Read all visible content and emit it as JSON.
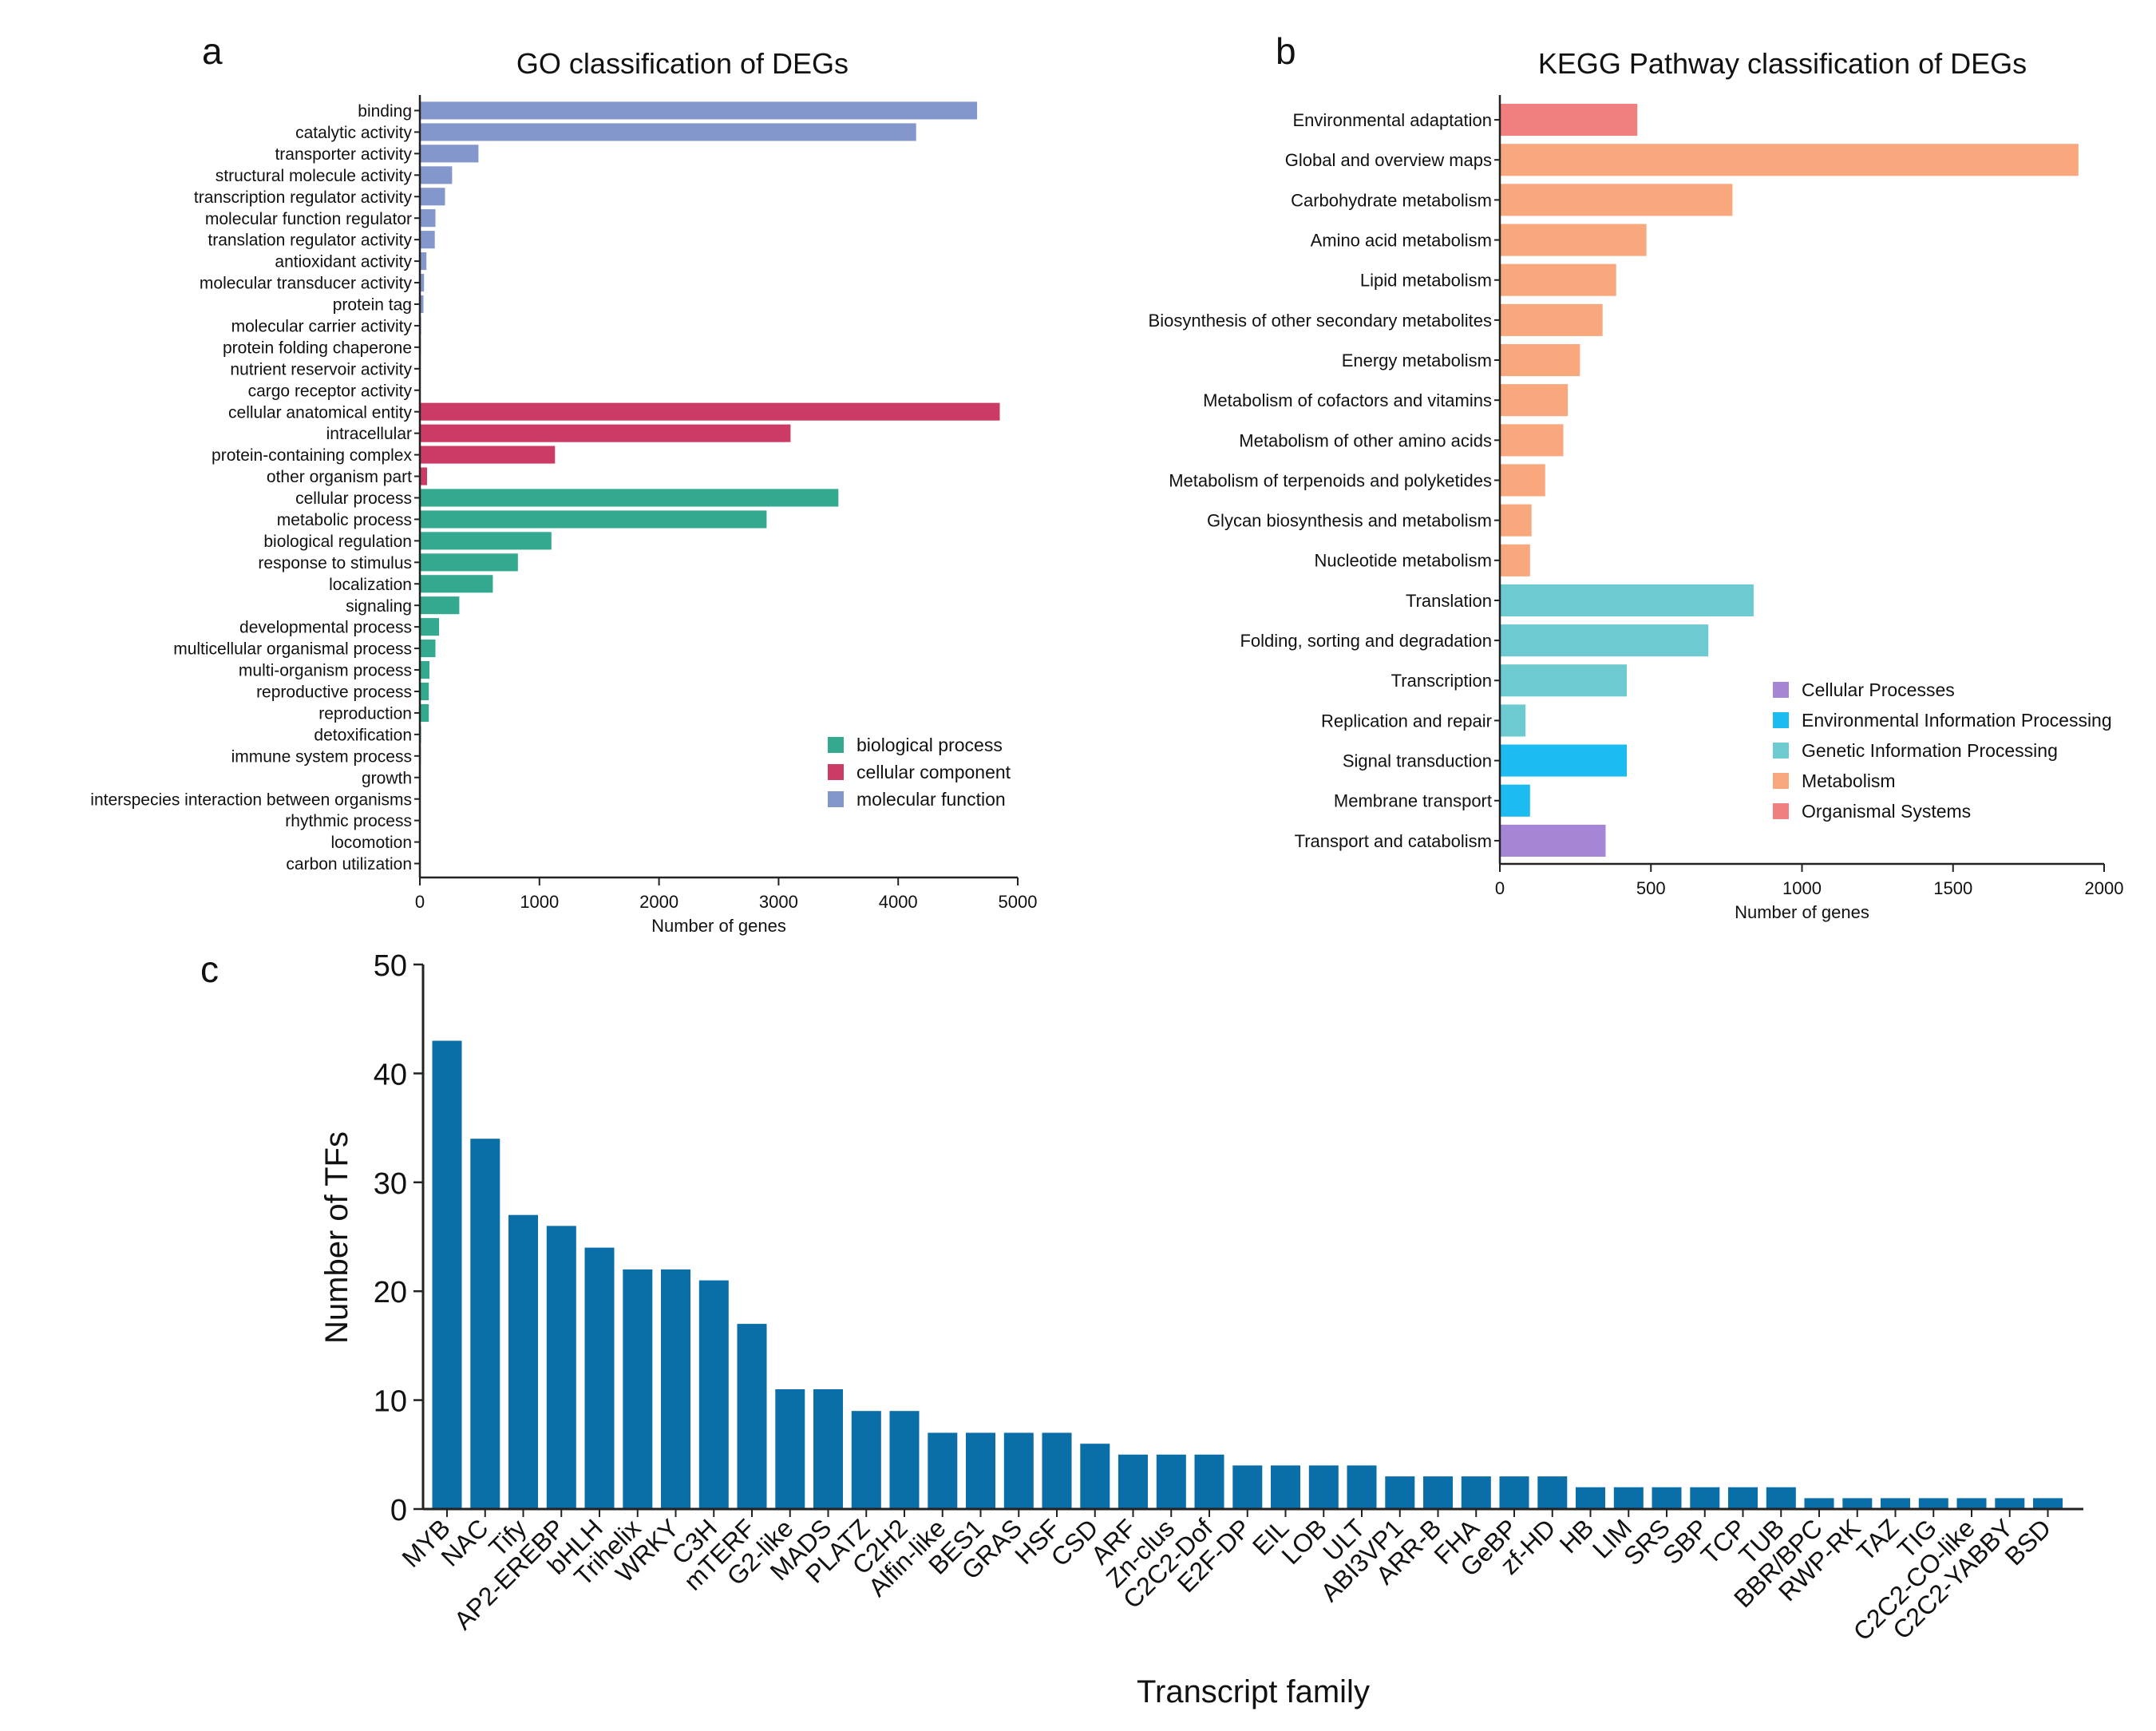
{
  "chart_data": [
    {
      "panel": "a",
      "type": "bar",
      "orientation": "horizontal",
      "title": "GO classification of DEGs",
      "xlabel": "Number of genes",
      "ylabel": "",
      "xlim": [
        0,
        5000
      ],
      "xticks": [
        "0",
        "1000",
        "2000",
        "3000",
        "4000",
        "5000"
      ],
      "legend_position": "bottom-right",
      "legend": [
        {
          "name": "biological process",
          "color": "#33a98f"
        },
        {
          "name": "cellular component",
          "color": "#cc3a66"
        },
        {
          "name": "molecular function",
          "color": "#8497cc"
        }
      ],
      "categories": [
        "binding",
        "catalytic activity",
        "transporter activity",
        "structural molecule activity",
        "transcription regulator activity",
        "molecular function regulator",
        "translation regulator activity",
        "antioxidant activity",
        "molecular transducer activity",
        "protein tag",
        "molecular carrier activity",
        "protein folding chaperone",
        "nutrient reservoir activity",
        "cargo receptor activity",
        "cellular anatomical entity",
        "intracellular",
        "protein-containing complex",
        "other organism part",
        "cellular process",
        "metabolic process",
        "biological regulation",
        "response to stimulus",
        "localization",
        "signaling",
        "developmental process",
        "multicellular organismal process",
        "multi-organism process",
        "reproductive process",
        "reproduction",
        "detoxification",
        "immune system process",
        "growth",
        "interspecies interaction between organisms",
        "rhythmic process",
        "locomotion",
        "carbon utilization"
      ],
      "values": [
        4660,
        4150,
        490,
        270,
        210,
        130,
        125,
        55,
        35,
        30,
        10,
        8,
        6,
        5,
        4850,
        3100,
        1130,
        60,
        3500,
        2900,
        1100,
        820,
        610,
        330,
        160,
        130,
        80,
        75,
        75,
        10,
        8,
        6,
        5,
        4,
        3,
        2
      ],
      "groups": [
        "molecular function",
        "molecular function",
        "molecular function",
        "molecular function",
        "molecular function",
        "molecular function",
        "molecular function",
        "molecular function",
        "molecular function",
        "molecular function",
        "molecular function",
        "molecular function",
        "molecular function",
        "molecular function",
        "cellular component",
        "cellular component",
        "cellular component",
        "cellular component",
        "biological process",
        "biological process",
        "biological process",
        "biological process",
        "biological process",
        "biological process",
        "biological process",
        "biological process",
        "biological process",
        "biological process",
        "biological process",
        "biological process",
        "biological process",
        "biological process",
        "biological process",
        "biological process",
        "biological process",
        "biological process"
      ]
    },
    {
      "panel": "b",
      "type": "bar",
      "orientation": "horizontal",
      "title": "KEGG Pathway classification of DEGs",
      "xlabel": "Number of genes",
      "ylabel": "",
      "xlim": [
        0,
        2000
      ],
      "xticks": [
        "0",
        "500",
        "1000",
        "1500",
        "2000"
      ],
      "legend_position": "right",
      "legend": [
        {
          "name": "Cellular Processes",
          "color": "#a585d6"
        },
        {
          "name": "Environmental Information Processing",
          "color": "#1cbcf0"
        },
        {
          "name": "Genetic Information Processing",
          "color": "#6dcad1"
        },
        {
          "name": "Metabolism",
          "color": "#f9a77d"
        },
        {
          "name": "Organismal Systems",
          "color": "#f27f80"
        }
      ],
      "categories": [
        "Environmental adaptation",
        "Global and overview maps",
        "Carbohydrate metabolism",
        "Amino acid metabolism",
        "Lipid metabolism",
        "Biosynthesis of other secondary metabolites",
        "Energy metabolism",
        "Metabolism of cofactors and vitamins",
        "Metabolism of other amino acids",
        "Metabolism of terpenoids and polyketides",
        "Glycan biosynthesis and metabolism",
        "Nucleotide metabolism",
        "Translation",
        "Folding, sorting and degradation",
        "Transcription",
        "Replication and repair",
        "Signal transduction",
        "Membrane transport",
        "Transport and catabolism"
      ],
      "values": [
        455,
        1915,
        770,
        485,
        385,
        340,
        265,
        225,
        210,
        150,
        105,
        100,
        840,
        690,
        420,
        85,
        420,
        100,
        350
      ],
      "groups": [
        "Organismal Systems",
        "Metabolism",
        "Metabolism",
        "Metabolism",
        "Metabolism",
        "Metabolism",
        "Metabolism",
        "Metabolism",
        "Metabolism",
        "Metabolism",
        "Metabolism",
        "Metabolism",
        "Genetic Information Processing",
        "Genetic Information Processing",
        "Genetic Information Processing",
        "Genetic Information Processing",
        "Environmental Information Processing",
        "Environmental Information Processing",
        "Cellular Processes"
      ]
    },
    {
      "panel": "c",
      "type": "bar",
      "orientation": "vertical",
      "title": "",
      "xlabel": "Transcript family",
      "ylabel": "Number of TFs",
      "ylim": [
        0,
        50
      ],
      "yticks": [
        "0",
        "10",
        "20",
        "30",
        "40",
        "50"
      ],
      "color": "#0a6ea8",
      "categories": [
        "MYB",
        "NAC",
        "Tify",
        "AP2-EREBP",
        "bHLH",
        "Trihelix",
        "WRKY",
        "C3H",
        "mTERF",
        "G2-like",
        "MADS",
        "PLATZ",
        "C2H2",
        "Alfin-like",
        "BES1",
        "GRAS",
        "HSF",
        "CSD",
        "ARF",
        "Zn-clus",
        "C2C2-Dof",
        "E2F-DP",
        "EIL",
        "LOB",
        "ULT",
        "ABI3VP1",
        "ARR-B",
        "FHA",
        "GeBP",
        "zf-HD",
        "HB",
        "LIM",
        "SRS",
        "SBP",
        "TCP",
        "TUB",
        "BBR/BPC",
        "RWP-RK",
        "TAZ",
        "TIG",
        "C2C2-CO-like",
        "C2C2-YABBY",
        "BSD"
      ],
      "values": [
        43,
        34,
        27,
        26,
        24,
        22,
        22,
        21,
        17,
        11,
        11,
        9,
        9,
        7,
        7,
        7,
        7,
        6,
        5,
        5,
        5,
        4,
        4,
        4,
        4,
        3,
        3,
        3,
        3,
        3,
        2,
        2,
        2,
        2,
        2,
        2,
        1,
        1,
        1,
        1,
        1,
        1,
        1
      ]
    }
  ]
}
